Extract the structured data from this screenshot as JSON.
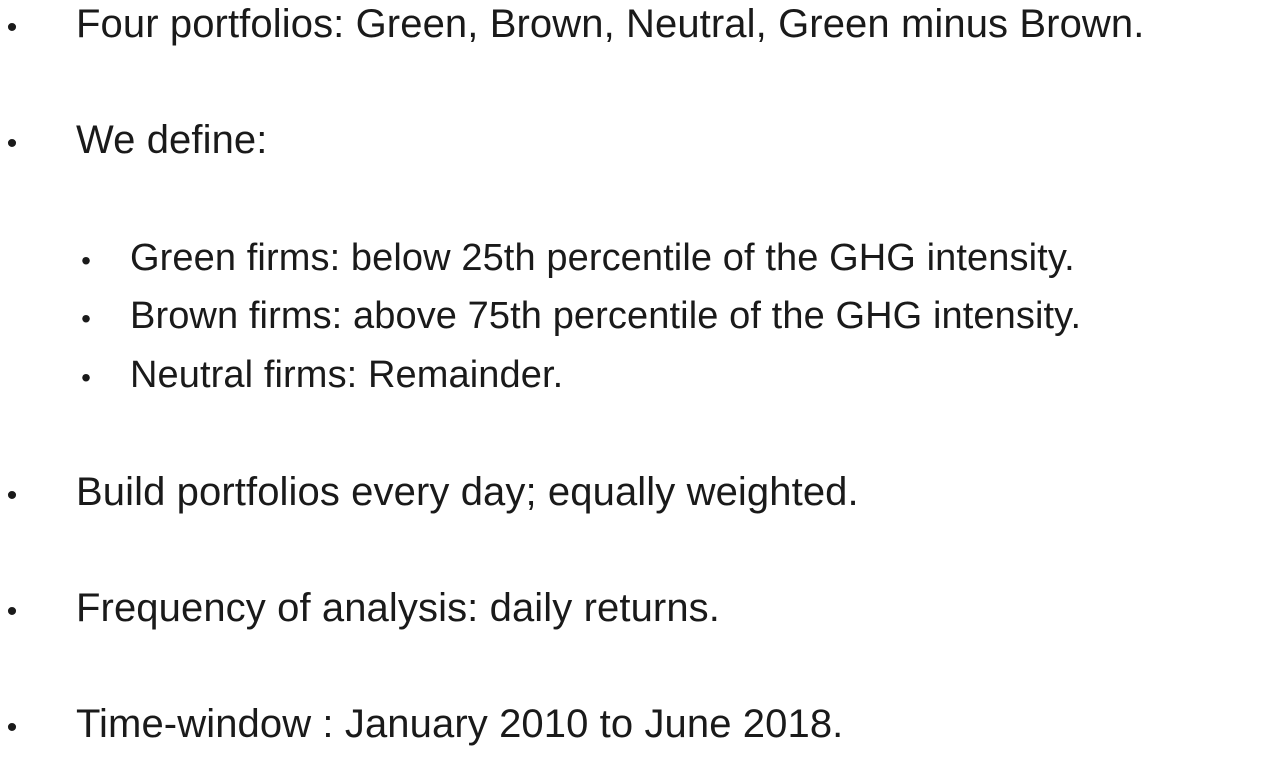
{
  "slide": {
    "bullets": [
      {
        "symbol": "•",
        "text": "Four portfolios: Green, Brown, Neutral, Green minus Brown."
      },
      {
        "symbol": "•",
        "text": "We define:"
      },
      {
        "symbol": "•",
        "text": "Green firms: below 25th percentile of the GHG intensity."
      },
      {
        "symbol": "•",
        "text": "Brown firms: above 75th percentile of the GHG intensity."
      },
      {
        "symbol": "•",
        "text": "Neutral firms: Remainder."
      },
      {
        "symbol": "•",
        "text": "Build portfolios every day; equally weighted."
      },
      {
        "symbol": "•",
        "text": "Frequency of analysis: daily returns."
      },
      {
        "symbol": "•",
        "text": "Time-window : January 2010 to June 2018."
      }
    ]
  }
}
